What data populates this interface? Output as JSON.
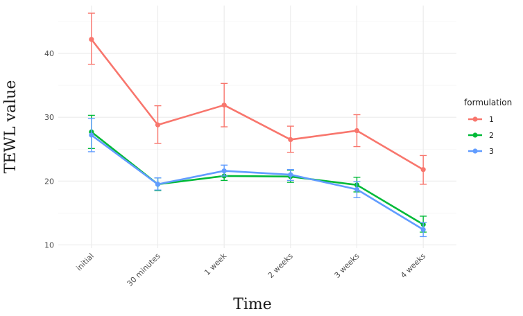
{
  "chart_data": {
    "type": "line",
    "xlabel": "Time",
    "ylabel": "TEWL value",
    "categories": [
      "initial",
      "30 minutes",
      "1 week",
      "2 weeks",
      "3 weeks",
      "4 weeks"
    ],
    "ylim": [
      9.5,
      47.5
    ],
    "yticks": [
      10,
      20,
      30,
      40
    ],
    "grid": true,
    "legend": {
      "title": "formulation",
      "position": "right"
    },
    "series": [
      {
        "name": "1",
        "color": "#F8766D",
        "values": [
          42.2,
          28.8,
          31.9,
          26.5,
          27.9,
          21.8
        ],
        "lower": [
          38.3,
          25.9,
          28.5,
          24.5,
          25.4,
          19.5
        ],
        "upper": [
          46.3,
          31.8,
          35.3,
          28.6,
          30.4,
          24.0
        ]
      },
      {
        "name": "2",
        "color": "#00BA38",
        "values": [
          27.7,
          19.5,
          20.8,
          20.7,
          19.4,
          13.2
        ],
        "lower": [
          25.1,
          18.5,
          20.1,
          19.8,
          18.3,
          12.0
        ],
        "upper": [
          30.3,
          20.5,
          21.5,
          21.7,
          20.6,
          14.5
        ]
      },
      {
        "name": "3",
        "color": "#619CFF",
        "values": [
          27.2,
          19.5,
          21.6,
          21.0,
          18.7,
          12.4
        ],
        "lower": [
          24.6,
          18.6,
          20.8,
          20.1,
          17.4,
          11.3
        ],
        "upper": [
          29.8,
          20.5,
          22.5,
          21.8,
          19.9,
          13.5
        ]
      }
    ]
  }
}
